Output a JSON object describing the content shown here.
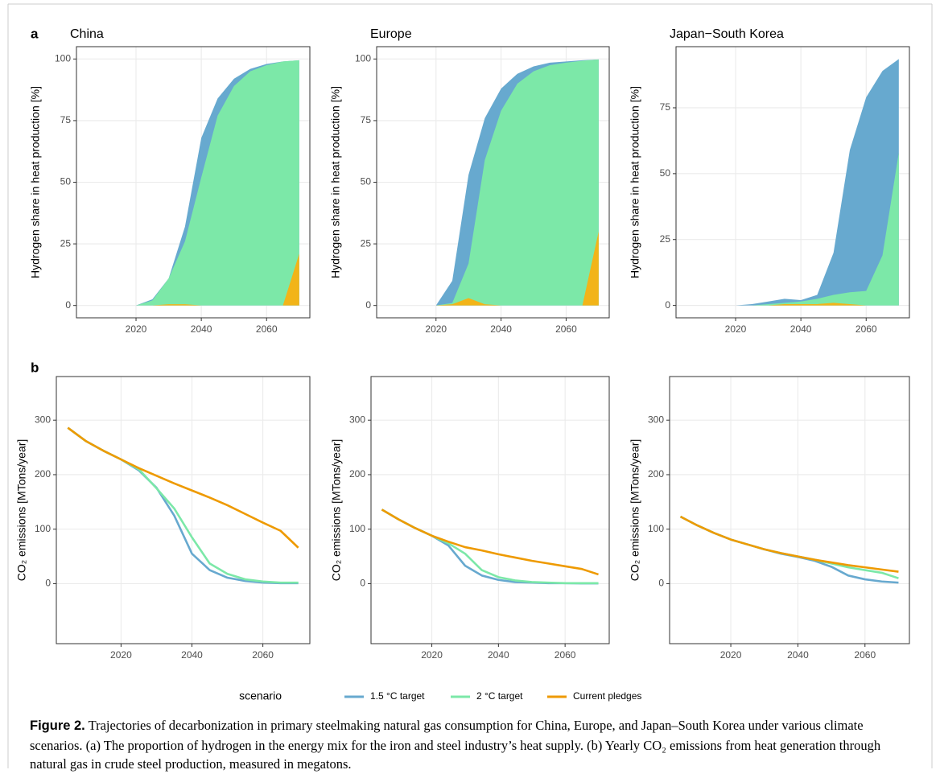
{
  "panel_labels": [
    "a",
    "b"
  ],
  "legend": {
    "title": "scenario"
  },
  "caption": {
    "label": "Figure 2.",
    "text": "Trajectories of decarbonization in primary steelmaking natural gas consumption for China, Europe, and Japan–South Korea under various climate scenarios. (a) The proportion of hydrogen in the energy mix for the iron and steel industry’s heat supply. (b) Yearly CO₂ emissions from heat generation through natural gas in crude steel production, measured in megatons."
  },
  "chart_data": [
    {
      "type": "area",
      "title": "China",
      "y_label": "Hydrogen share in heat production [%]",
      "x": [
        2020,
        2025,
        2030,
        2035,
        2040,
        2045,
        2050,
        2055,
        2060,
        2065,
        2070
      ],
      "xlim": [
        2001.75,
        2073.25
      ],
      "xticks": [
        2020,
        2040,
        2060
      ],
      "ylim": [
        -5,
        105
      ],
      "yticks": [
        0,
        25,
        50,
        75,
        100
      ],
      "grid": true,
      "series": [
        {
          "name": "1.5 °C target",
          "color": "#67a9cf",
          "values": [
            0,
            2.5,
            11,
            32,
            68,
            84,
            92,
            96,
            98,
            99,
            99.5
          ]
        },
        {
          "name": "2 °C target",
          "color": "#7ce8a8",
          "values": [
            0,
            2,
            11,
            26,
            52,
            77,
            89,
            95,
            97.5,
            99,
            99.5
          ]
        },
        {
          "name": "Current pledges",
          "color": "#f2b418",
          "values": [
            0,
            0,
            0.5,
            0.5,
            0,
            0,
            0,
            0,
            0,
            0,
            21
          ]
        }
      ]
    },
    {
      "type": "area",
      "title": "Europe",
      "y_label": "Hydrogen share in heat production [%]",
      "x": [
        2020,
        2025,
        2030,
        2035,
        2040,
        2045,
        2050,
        2055,
        2060,
        2065,
        2070
      ],
      "xlim": [
        2001.75,
        2073.25
      ],
      "xticks": [
        2020,
        2040,
        2060
      ],
      "ylim": [
        -5,
        105
      ],
      "yticks": [
        0,
        25,
        50,
        75,
        100
      ],
      "grid": true,
      "series": [
        {
          "name": "1.5 °C target",
          "color": "#67a9cf",
          "values": [
            0,
            10,
            53,
            76,
            88,
            94,
            97,
            98.5,
            99,
            99.5,
            99.8
          ]
        },
        {
          "name": "2 °C target",
          "color": "#7ce8a8",
          "values": [
            0,
            1,
            17,
            59,
            79,
            90,
            95,
            97.5,
            98.5,
            99.3,
            99.8
          ]
        },
        {
          "name": "Current pledges",
          "color": "#f2b418",
          "values": [
            0,
            0.5,
            3,
            0.5,
            0,
            0,
            0,
            0,
            0,
            0,
            30
          ]
        }
      ]
    },
    {
      "type": "area",
      "title": "Japan−South Korea",
      "y_label": "Hydrogen share in heat production [%]",
      "x": [
        2020,
        2025,
        2030,
        2035,
        2040,
        2045,
        2050,
        2055,
        2060,
        2065,
        2070
      ],
      "xlim": [
        2001.75,
        2073.25
      ],
      "xticks": [
        2020,
        2040,
        2060
      ],
      "ylim": [
        -4.7,
        98.2
      ],
      "yticks": [
        0,
        25,
        50,
        75
      ],
      "grid": true,
      "series": [
        {
          "name": "1.5 °C target",
          "color": "#67a9cf",
          "values": [
            0,
            0.5,
            1.5,
            2.5,
            2,
            4,
            20,
            59,
            79,
            89,
            93.5
          ]
        },
        {
          "name": "2 °C target",
          "color": "#7ce8a8",
          "values": [
            0,
            0,
            0.5,
            1,
            1.5,
            2.5,
            4,
            5,
            5.5,
            19,
            58
          ]
        },
        {
          "name": "Current pledges",
          "color": "#f2b418",
          "values": [
            0,
            0,
            0,
            0.5,
            0.5,
            0.5,
            1,
            0.5,
            0,
            0,
            0
          ]
        }
      ]
    },
    {
      "type": "line",
      "y_label": "CO₂ emissions [MTons/year]",
      "x": [
        2005,
        2010,
        2015,
        2020,
        2025,
        2030,
        2035,
        2040,
        2045,
        2050,
        2055,
        2060,
        2065,
        2070
      ],
      "xlim": [
        2001.75,
        2073.25
      ],
      "xticks": [
        2020,
        2040,
        2060
      ],
      "ylim": [
        -110,
        380
      ],
      "yticks": [
        0,
        100,
        200,
        300
      ],
      "grid": true,
      "series": [
        {
          "name": "1.5 °C target",
          "color": "#67a9cf",
          "values": [
            286,
            262,
            244,
            228,
            208,
            176,
            125,
            55,
            25,
            11,
            5,
            2,
            1,
            1
          ]
        },
        {
          "name": "2 °C target",
          "color": "#7ce8a8",
          "values": [
            286,
            262,
            244,
            228,
            210,
            175,
            138,
            85,
            37,
            18,
            8,
            4,
            2,
            2
          ]
        },
        {
          "name": "Current pledges",
          "color": "#ee9a00",
          "values": [
            286,
            262,
            244,
            228,
            212,
            198,
            184,
            171,
            158,
            144,
            128,
            112,
            97,
            66
          ]
        }
      ]
    },
    {
      "type": "line",
      "y_label": "CO₂ emissions [MTons/year]",
      "x": [
        2005,
        2010,
        2015,
        2020,
        2025,
        2030,
        2035,
        2040,
        2045,
        2050,
        2055,
        2060,
        2065,
        2070
      ],
      "xlim": [
        2001.75,
        2073.25
      ],
      "xticks": [
        2020,
        2040,
        2060
      ],
      "ylim": [
        -110,
        380
      ],
      "yticks": [
        0,
        100,
        200,
        300
      ],
      "grid": true,
      "series": [
        {
          "name": "1.5 °C target",
          "color": "#67a9cf",
          "values": [
            136,
            118,
            102,
            88,
            70,
            33,
            15,
            7,
            3,
            2,
            1,
            1,
            0.5,
            0.5
          ]
        },
        {
          "name": "2 °C target",
          "color": "#7ce8a8",
          "values": [
            136,
            118,
            102,
            88,
            74,
            55,
            25,
            12,
            6,
            3,
            2,
            1,
            1,
            1
          ]
        },
        {
          "name": "Current pledges",
          "color": "#ee9a00",
          "values": [
            136,
            118,
            102,
            88,
            77,
            67,
            61,
            54,
            48,
            42,
            37,
            32,
            27,
            17
          ]
        }
      ]
    },
    {
      "type": "line",
      "y_label": "CO₂ emissions [MTons/year]",
      "x": [
        2005,
        2010,
        2015,
        2020,
        2025,
        2030,
        2035,
        2040,
        2045,
        2050,
        2055,
        2060,
        2065,
        2070
      ],
      "xlim": [
        2001.75,
        2073.25
      ],
      "xticks": [
        2020,
        2040,
        2060
      ],
      "ylim": [
        -110,
        380
      ],
      "yticks": [
        0,
        100,
        200,
        300
      ],
      "grid": true,
      "series": [
        {
          "name": "1.5 °C target",
          "color": "#67a9cf",
          "values": [
            123,
            107,
            93,
            81,
            72,
            63,
            55,
            49,
            42,
            31,
            15,
            8,
            4,
            2
          ]
        },
        {
          "name": "2 °C target",
          "color": "#7ce8a8",
          "values": [
            123,
            107,
            93,
            81,
            72,
            63,
            56,
            50,
            44,
            37,
            30,
            25,
            20,
            10
          ]
        },
        {
          "name": "Current pledges",
          "color": "#ee9a00",
          "values": [
            123,
            107,
            93,
            81,
            72,
            63,
            56,
            50,
            44,
            39,
            34,
            30,
            26,
            22
          ]
        }
      ]
    }
  ]
}
